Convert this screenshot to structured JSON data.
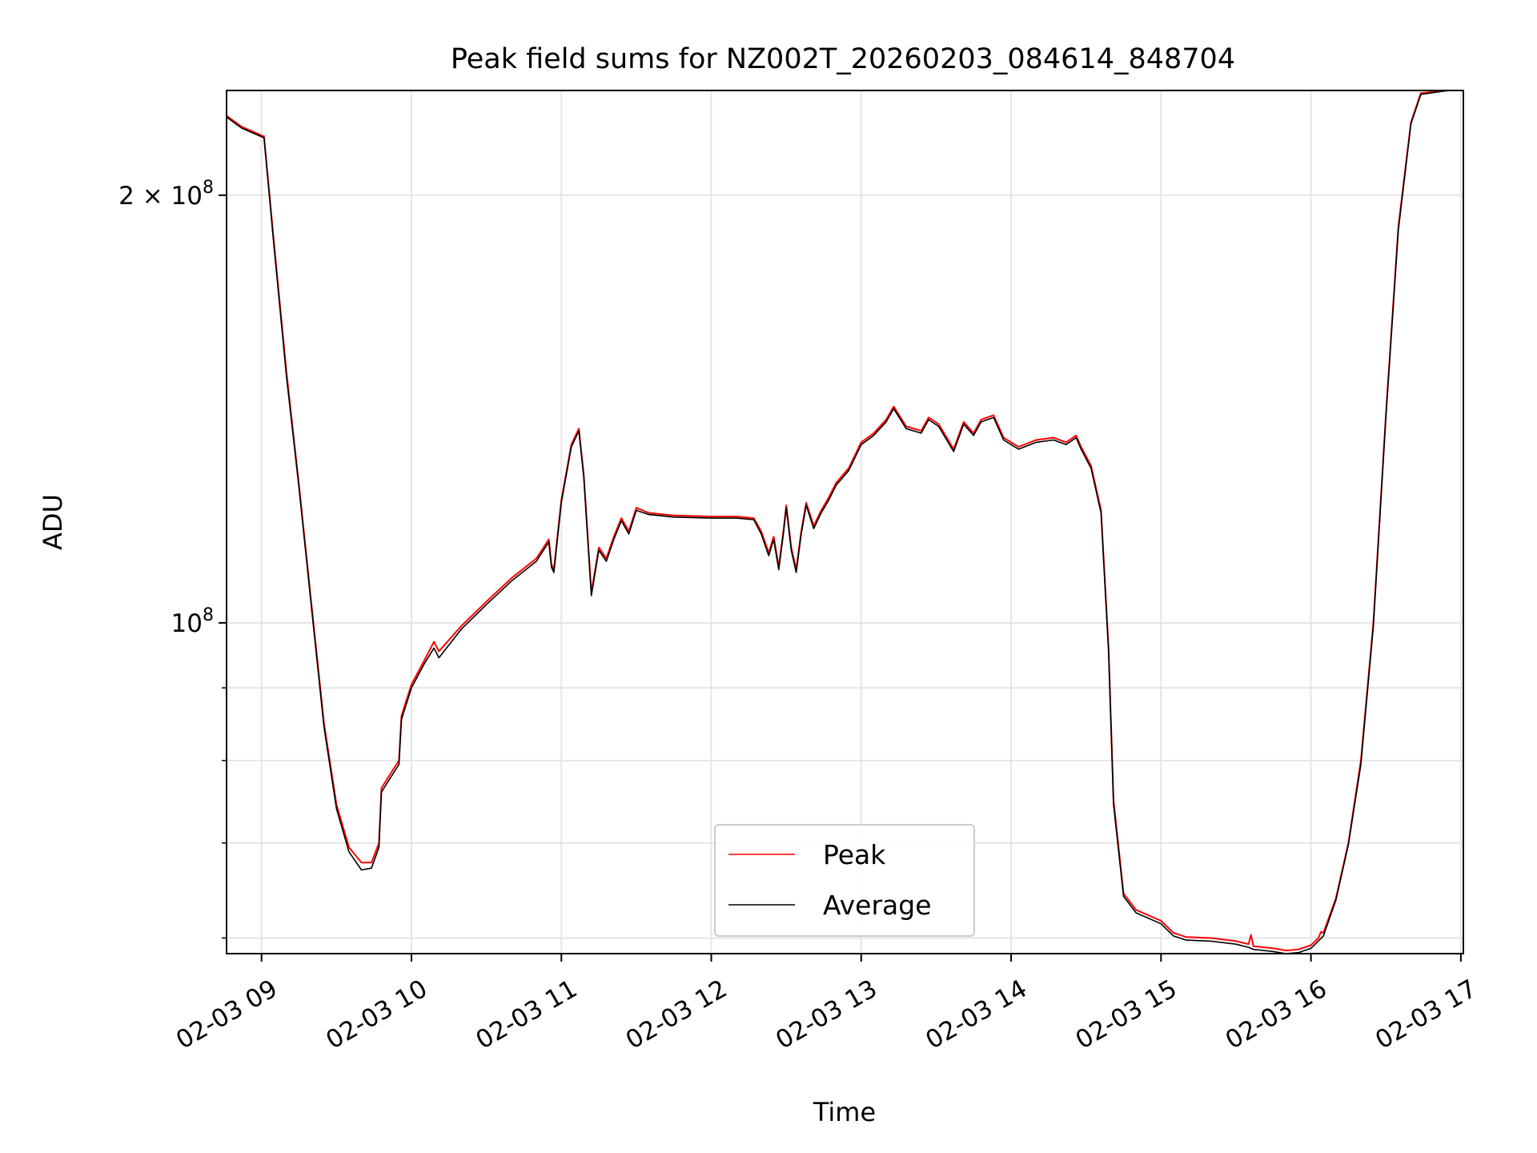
{
  "chart_data": {
    "type": "line",
    "title": "Peak field sums for NZ002T_20260203_084614_848704",
    "xlabel": "Time",
    "ylabel": "ADU",
    "y_scale": "log",
    "grid": true,
    "legend_position": "bottom-center",
    "xlim": [
      "2026-02-03T08:46",
      "2026-02-03T17:01"
    ],
    "ylim": [
      58500000,
      237000000
    ],
    "x_ticks": [
      {
        "value": "2026-02-03T09:00",
        "label": "02-03 09"
      },
      {
        "value": "2026-02-03T10:00",
        "label": "02-03 10"
      },
      {
        "value": "2026-02-03T11:00",
        "label": "02-03 11"
      },
      {
        "value": "2026-02-03T12:00",
        "label": "02-03 12"
      },
      {
        "value": "2026-02-03T13:00",
        "label": "02-03 13"
      },
      {
        "value": "2026-02-03T14:00",
        "label": "02-03 14"
      },
      {
        "value": "2026-02-03T15:00",
        "label": "02-03 15"
      },
      {
        "value": "2026-02-03T16:00",
        "label": "02-03 16"
      },
      {
        "value": "2026-02-03T17:00",
        "label": "02-03 17"
      }
    ],
    "y_major_ticks": [
      {
        "value": 100000000,
        "label_base": "10",
        "label_exp": "8"
      },
      {
        "value": 200000000,
        "label_base": "2 × 10",
        "label_exp": "8"
      }
    ],
    "y_minor_ticks": [
      60000000,
      70000000,
      80000000,
      90000000
    ],
    "series": [
      {
        "name": "Peak",
        "color": "#ff0000",
        "points": [
          [
            "2026-02-03T08:46",
            227500000
          ],
          [
            "2026-02-03T08:52",
            223500000
          ],
          [
            "2026-02-03T09:01",
            220000000
          ],
          [
            "2026-02-03T09:05",
            185000000
          ],
          [
            "2026-02-03T09:10",
            150000000
          ],
          [
            "2026-02-03T09:15",
            125000000
          ],
          [
            "2026-02-03T09:20",
            103000000
          ],
          [
            "2026-02-03T09:25",
            85000000
          ],
          [
            "2026-02-03T09:30",
            74500000
          ],
          [
            "2026-02-03T09:35",
            69500000
          ],
          [
            "2026-02-03T09:40",
            67800000
          ],
          [
            "2026-02-03T09:44",
            67800000
          ],
          [
            "2026-02-03T09:47",
            70000000
          ],
          [
            "2026-02-03T09:48",
            76500000
          ],
          [
            "2026-02-03T09:52",
            78500000
          ],
          [
            "2026-02-03T09:55",
            80000000
          ],
          [
            "2026-02-03T09:56",
            86000000
          ],
          [
            "2026-02-03T10:00",
            90500000
          ],
          [
            "2026-02-03T10:05",
            94000000
          ],
          [
            "2026-02-03T10:09",
            97000000
          ],
          [
            "2026-02-03T10:11",
            95500000
          ],
          [
            "2026-02-03T10:20",
            99500000
          ],
          [
            "2026-02-03T10:30",
            103500000
          ],
          [
            "2026-02-03T10:40",
            107500000
          ],
          [
            "2026-02-03T10:50",
            111000000
          ],
          [
            "2026-02-03T10:55",
            114500000
          ],
          [
            "2026-02-03T10:56",
            110000000
          ],
          [
            "2026-02-03T10:57",
            109000000
          ],
          [
            "2026-02-03T11:00",
            122000000
          ],
          [
            "2026-02-03T11:04",
            133500000
          ],
          [
            "2026-02-03T11:07",
            137000000
          ],
          [
            "2026-02-03T11:09",
            127000000
          ],
          [
            "2026-02-03T11:12",
            105000000
          ],
          [
            "2026-02-03T11:15",
            113000000
          ],
          [
            "2026-02-03T11:18",
            111000000
          ],
          [
            "2026-02-03T11:21",
            115000000
          ],
          [
            "2026-02-03T11:24",
            118500000
          ],
          [
            "2026-02-03T11:27",
            116000000
          ],
          [
            "2026-02-03T11:30",
            120500000
          ],
          [
            "2026-02-03T11:35",
            119500000
          ],
          [
            "2026-02-03T11:45",
            119000000
          ],
          [
            "2026-02-03T12:00",
            118800000
          ],
          [
            "2026-02-03T12:10",
            118800000
          ],
          [
            "2026-02-03T12:17",
            118500000
          ],
          [
            "2026-02-03T12:20",
            116000000
          ],
          [
            "2026-02-03T12:23",
            112000000
          ],
          [
            "2026-02-03T12:25",
            115000000
          ],
          [
            "2026-02-03T12:27",
            109500000
          ],
          [
            "2026-02-03T12:29",
            116500000
          ],
          [
            "2026-02-03T12:30",
            121000000
          ],
          [
            "2026-02-03T12:32",
            113000000
          ],
          [
            "2026-02-03T12:34",
            109000000
          ],
          [
            "2026-02-03T12:36",
            116000000
          ],
          [
            "2026-02-03T12:38",
            121500000
          ],
          [
            "2026-02-03T12:41",
            117000000
          ],
          [
            "2026-02-03T12:44",
            120000000
          ],
          [
            "2026-02-03T12:47",
            122500000
          ],
          [
            "2026-02-03T12:50",
            125500000
          ],
          [
            "2026-02-03T12:55",
            128500000
          ],
          [
            "2026-02-03T13:00",
            134000000
          ],
          [
            "2026-02-03T13:05",
            136000000
          ],
          [
            "2026-02-03T13:10",
            139000000
          ],
          [
            "2026-02-03T13:13",
            142000000
          ],
          [
            "2026-02-03T13:18",
            137500000
          ],
          [
            "2026-02-03T13:24",
            136500000
          ],
          [
            "2026-02-03T13:27",
            139500000
          ],
          [
            "2026-02-03T13:31",
            138000000
          ],
          [
            "2026-02-03T13:37",
            132500000
          ],
          [
            "2026-02-03T13:41",
            138500000
          ],
          [
            "2026-02-03T13:45",
            136000000
          ],
          [
            "2026-02-03T13:48",
            139000000
          ],
          [
            "2026-02-03T13:53",
            140000000
          ],
          [
            "2026-02-03T13:57",
            135000000
          ],
          [
            "2026-02-03T14:00",
            134000000
          ],
          [
            "2026-02-03T14:03",
            133000000
          ],
          [
            "2026-02-03T14:10",
            134500000
          ],
          [
            "2026-02-03T14:17",
            135000000
          ],
          [
            "2026-02-03T14:22",
            134000000
          ],
          [
            "2026-02-03T14:26",
            135500000
          ],
          [
            "2026-02-03T14:28",
            133000000
          ],
          [
            "2026-02-03T14:32",
            129000000
          ],
          [
            "2026-02-03T14:36",
            120000000
          ],
          [
            "2026-02-03T14:39",
            96000000
          ],
          [
            "2026-02-03T14:41",
            75000000
          ],
          [
            "2026-02-03T14:45",
            64500000
          ],
          [
            "2026-02-03T14:50",
            62800000
          ],
          [
            "2026-02-03T15:00",
            61700000
          ],
          [
            "2026-02-03T15:05",
            60500000
          ],
          [
            "2026-02-03T15:10",
            60100000
          ],
          [
            "2026-02-03T15:20",
            60000000
          ],
          [
            "2026-02-03T15:30",
            59700000
          ],
          [
            "2026-02-03T15:35",
            59400000
          ],
          [
            "2026-02-03T15:36",
            60300000
          ],
          [
            "2026-02-03T15:37",
            59200000
          ],
          [
            "2026-02-03T15:45",
            59000000
          ],
          [
            "2026-02-03T15:50",
            58800000
          ],
          [
            "2026-02-03T15:55",
            58900000
          ],
          [
            "2026-02-03T16:00",
            59300000
          ],
          [
            "2026-02-03T16:03",
            60000000
          ],
          [
            "2026-02-03T16:04",
            60600000
          ],
          [
            "2026-02-03T16:05",
            60500000
          ],
          [
            "2026-02-03T16:10",
            64000000
          ],
          [
            "2026-02-03T16:15",
            70000000
          ],
          [
            "2026-02-03T16:20",
            80000000
          ],
          [
            "2026-02-03T16:25",
            100000000
          ],
          [
            "2026-02-03T16:30",
            140000000
          ],
          [
            "2026-02-03T16:35",
            190000000
          ],
          [
            "2026-02-03T16:40",
            225000000
          ],
          [
            "2026-02-03T16:44",
            236000000
          ],
          [
            "2026-02-03T16:55",
            237000000
          ]
        ]
      },
      {
        "name": "Average",
        "color": "#000000",
        "points": [
          [
            "2026-02-03T08:46",
            227000000
          ],
          [
            "2026-02-03T08:52",
            223000000
          ],
          [
            "2026-02-03T09:01",
            219500000
          ],
          [
            "2026-02-03T09:05",
            184000000
          ],
          [
            "2026-02-03T09:10",
            149000000
          ],
          [
            "2026-02-03T09:15",
            124500000
          ],
          [
            "2026-02-03T09:20",
            102500000
          ],
          [
            "2026-02-03T09:25",
            84500000
          ],
          [
            "2026-02-03T09:30",
            74000000
          ],
          [
            "2026-02-03T09:35",
            69000000
          ],
          [
            "2026-02-03T09:40",
            67000000
          ],
          [
            "2026-02-03T09:44",
            67200000
          ],
          [
            "2026-02-03T09:47",
            69500000
          ],
          [
            "2026-02-03T09:48",
            76000000
          ],
          [
            "2026-02-03T09:52",
            78000000
          ],
          [
            "2026-02-03T09:55",
            79500000
          ],
          [
            "2026-02-03T09:56",
            85500000
          ],
          [
            "2026-02-03T10:00",
            90000000
          ],
          [
            "2026-02-03T10:05",
            93500000
          ],
          [
            "2026-02-03T10:09",
            96000000
          ],
          [
            "2026-02-03T10:11",
            94500000
          ],
          [
            "2026-02-03T10:20",
            99000000
          ],
          [
            "2026-02-03T10:30",
            103000000
          ],
          [
            "2026-02-03T10:40",
            107000000
          ],
          [
            "2026-02-03T10:50",
            110500000
          ],
          [
            "2026-02-03T10:55",
            114000000
          ],
          [
            "2026-02-03T10:56",
            109500000
          ],
          [
            "2026-02-03T10:57",
            108500000
          ],
          [
            "2026-02-03T11:00",
            121500000
          ],
          [
            "2026-02-03T11:04",
            133000000
          ],
          [
            "2026-02-03T11:07",
            136500000
          ],
          [
            "2026-02-03T11:09",
            126500000
          ],
          [
            "2026-02-03T11:12",
            104500000
          ],
          [
            "2026-02-03T11:15",
            112500000
          ],
          [
            "2026-02-03T11:18",
            110500000
          ],
          [
            "2026-02-03T11:21",
            114500000
          ],
          [
            "2026-02-03T11:24",
            118000000
          ],
          [
            "2026-02-03T11:27",
            115500000
          ],
          [
            "2026-02-03T11:30",
            120000000
          ],
          [
            "2026-02-03T11:35",
            119200000
          ],
          [
            "2026-02-03T11:45",
            118700000
          ],
          [
            "2026-02-03T12:00",
            118500000
          ],
          [
            "2026-02-03T12:10",
            118500000
          ],
          [
            "2026-02-03T12:17",
            118200000
          ],
          [
            "2026-02-03T12:20",
            115500000
          ],
          [
            "2026-02-03T12:23",
            111500000
          ],
          [
            "2026-02-03T12:25",
            114500000
          ],
          [
            "2026-02-03T12:27",
            109000000
          ],
          [
            "2026-02-03T12:29",
            116000000
          ],
          [
            "2026-02-03T12:30",
            120500000
          ],
          [
            "2026-02-03T12:32",
            112500000
          ],
          [
            "2026-02-03T12:34",
            108500000
          ],
          [
            "2026-02-03T12:36",
            115500000
          ],
          [
            "2026-02-03T12:38",
            121000000
          ],
          [
            "2026-02-03T12:41",
            116500000
          ],
          [
            "2026-02-03T12:44",
            119500000
          ],
          [
            "2026-02-03T12:47",
            122000000
          ],
          [
            "2026-02-03T12:50",
            125000000
          ],
          [
            "2026-02-03T12:55",
            128000000
          ],
          [
            "2026-02-03T13:00",
            133500000
          ],
          [
            "2026-02-03T13:05",
            135500000
          ],
          [
            "2026-02-03T13:10",
            138500000
          ],
          [
            "2026-02-03T13:13",
            141500000
          ],
          [
            "2026-02-03T13:18",
            137000000
          ],
          [
            "2026-02-03T13:24",
            136000000
          ],
          [
            "2026-02-03T13:27",
            139000000
          ],
          [
            "2026-02-03T13:31",
            137500000
          ],
          [
            "2026-02-03T13:37",
            132000000
          ],
          [
            "2026-02-03T13:41",
            138000000
          ],
          [
            "2026-02-03T13:45",
            135500000
          ],
          [
            "2026-02-03T13:48",
            138500000
          ],
          [
            "2026-02-03T13:53",
            139500000
          ],
          [
            "2026-02-03T13:57",
            134500000
          ],
          [
            "2026-02-03T14:00",
            133500000
          ],
          [
            "2026-02-03T14:03",
            132500000
          ],
          [
            "2026-02-03T14:10",
            134000000
          ],
          [
            "2026-02-03T14:17",
            134500000
          ],
          [
            "2026-02-03T14:22",
            133500000
          ],
          [
            "2026-02-03T14:26",
            135000000
          ],
          [
            "2026-02-03T14:28",
            132500000
          ],
          [
            "2026-02-03T14:32",
            128500000
          ],
          [
            "2026-02-03T14:36",
            119500000
          ],
          [
            "2026-02-03T14:39",
            95500000
          ],
          [
            "2026-02-03T14:41",
            74500000
          ],
          [
            "2026-02-03T14:45",
            64200000
          ],
          [
            "2026-02-03T14:50",
            62500000
          ],
          [
            "2026-02-03T15:00",
            61400000
          ],
          [
            "2026-02-03T15:05",
            60200000
          ],
          [
            "2026-02-03T15:10",
            59800000
          ],
          [
            "2026-02-03T15:20",
            59700000
          ],
          [
            "2026-02-03T15:30",
            59400000
          ],
          [
            "2026-02-03T15:35",
            59100000
          ],
          [
            "2026-02-03T15:37",
            58900000
          ],
          [
            "2026-02-03T15:45",
            58700000
          ],
          [
            "2026-02-03T15:50",
            58500000
          ],
          [
            "2026-02-03T15:55",
            58600000
          ],
          [
            "2026-02-03T16:00",
            59000000
          ],
          [
            "2026-02-03T16:05",
            60200000
          ],
          [
            "2026-02-03T16:10",
            63800000
          ],
          [
            "2026-02-03T16:15",
            69800000
          ],
          [
            "2026-02-03T16:20",
            79500000
          ],
          [
            "2026-02-03T16:25",
            99500000
          ],
          [
            "2026-02-03T16:30",
            139500000
          ],
          [
            "2026-02-03T16:35",
            189000000
          ],
          [
            "2026-02-03T16:40",
            224500000
          ],
          [
            "2026-02-03T16:44",
            235500000
          ],
          [
            "2026-02-03T16:55",
            237000000
          ]
        ]
      }
    ]
  }
}
